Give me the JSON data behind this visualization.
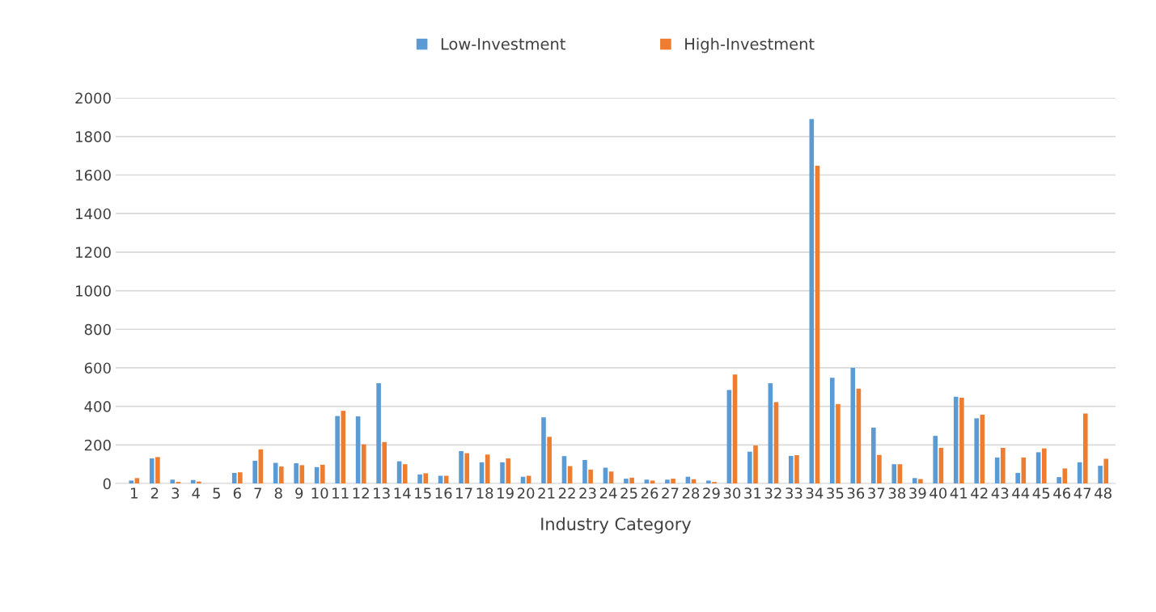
{
  "chart_data": {
    "type": "bar",
    "xlabel": "Industry Category",
    "categories": [
      "1",
      "2",
      "3",
      "4",
      "5",
      "6",
      "7",
      "8",
      "9",
      "10",
      "11",
      "12",
      "13",
      "14",
      "15",
      "16",
      "17",
      "18",
      "19",
      "20",
      "21",
      "22",
      "23",
      "24",
      "25",
      "26",
      "27",
      "28",
      "29",
      "30",
      "31",
      "32",
      "33",
      "34",
      "35",
      "36",
      "37",
      "38",
      "39",
      "40",
      "41",
      "42",
      "43",
      "44",
      "45",
      "46",
      "47",
      "48"
    ],
    "series": [
      {
        "name": "Low-Investment",
        "color": "#5b9bd5",
        "values": [
          15,
          130,
          20,
          18,
          null,
          55,
          118,
          107,
          105,
          85,
          350,
          348,
          520,
          115,
          47,
          40,
          168,
          110,
          110,
          35,
          343,
          142,
          122,
          82,
          25,
          20,
          20,
          35,
          15,
          485,
          165,
          520,
          143,
          1890,
          548,
          600,
          290,
          100,
          28,
          247,
          450,
          338,
          135,
          55,
          162,
          33,
          110,
          92
        ]
      },
      {
        "name": "High-Investment",
        "color": "#ed7d31",
        "values": [
          28,
          137,
          8,
          10,
          null,
          58,
          177,
          88,
          95,
          97,
          377,
          203,
          215,
          100,
          53,
          40,
          157,
          150,
          130,
          40,
          242,
          90,
          72,
          62,
          30,
          15,
          25,
          22,
          8,
          565,
          197,
          422,
          147,
          1648,
          412,
          492,
          148,
          100,
          23,
          185,
          445,
          357,
          185,
          135,
          182,
          78,
          363,
          128
        ]
      }
    ],
    "ylim": [
      0,
      2000
    ],
    "yticks": [
      0,
      200,
      400,
      600,
      800,
      1000,
      1200,
      1400,
      1600,
      1800,
      2000
    ],
    "grid": "y",
    "legend": "top"
  }
}
